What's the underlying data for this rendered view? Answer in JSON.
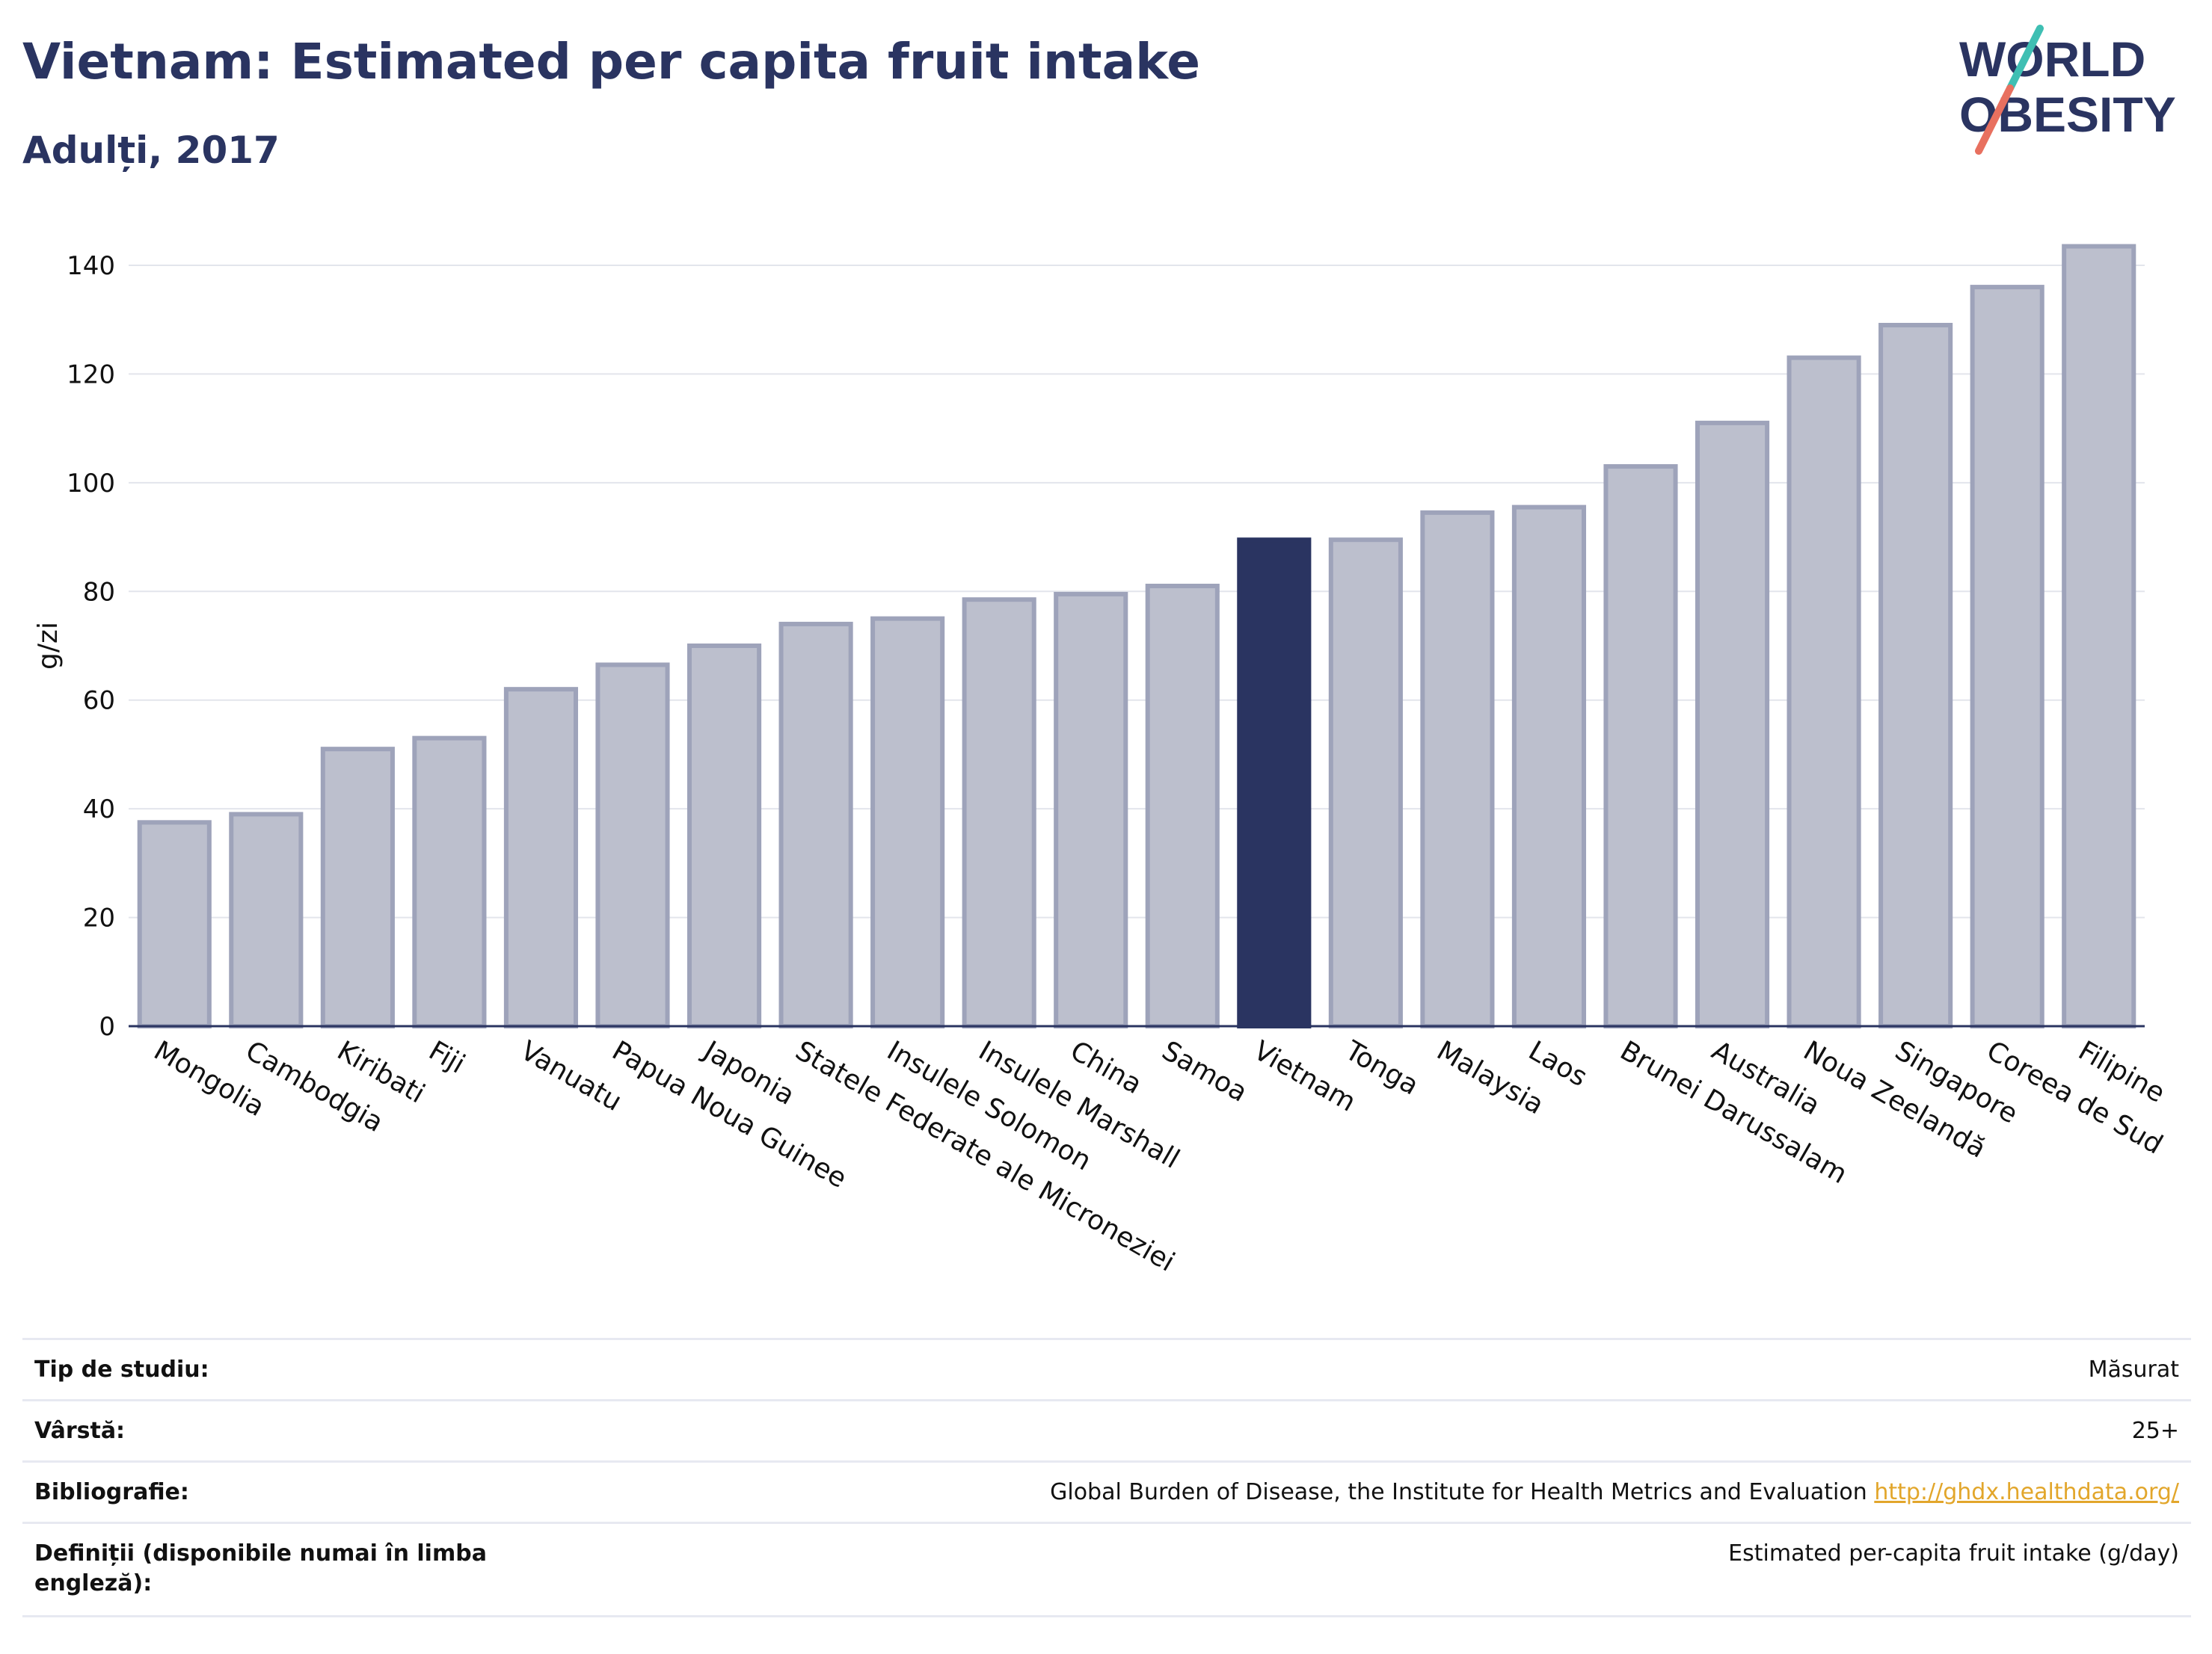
{
  "header": {
    "title": "Vietnam: Estimated per capita fruit intake",
    "subtitle": "Adulți, 2017",
    "logo_line1": "WORLD",
    "logo_line2": "OBESITY"
  },
  "colors": {
    "accent": "#2a3461",
    "bar": "#bcbfcd",
    "bar_edge": "#9ea3ba",
    "highlight": "#2a3461",
    "logo_teal": "#3fbfb3",
    "logo_coral": "#e8705f",
    "link": "#e2a62b"
  },
  "chart_data": {
    "type": "bar",
    "title": "Vietnam: Estimated per capita fruit intake",
    "subtitle": "Adulți, 2017",
    "xlabel": "",
    "ylabel": "g/zi",
    "ylim": [
      0,
      145
    ],
    "yticks": [
      0,
      20,
      40,
      60,
      80,
      100,
      120,
      140
    ],
    "grid": true,
    "highlight": "Vietnam",
    "categories": [
      "Mongolia",
      "Cambodgia",
      "Kiribati",
      "Fiji",
      "Vanuatu",
      "Papua Noua Guinee",
      "Japonia",
      "Statele Federate ale Microneziei",
      "Insulele Solomon",
      "Insulele Marshall",
      "China",
      "Samoa",
      "Vietnam",
      "Tonga",
      "Malaysia",
      "Laos",
      "Brunei Darussalam",
      "Australia",
      "Noua Zeelandă",
      "Singapore",
      "Coreea de Sud",
      "Filipine"
    ],
    "values": [
      37.5,
      39,
      51,
      53,
      62,
      66.5,
      70,
      74,
      75,
      78.5,
      79.5,
      81,
      89.5,
      89.5,
      94.5,
      95.5,
      103,
      111,
      123,
      129,
      136,
      143.5
    ]
  },
  "info": [
    {
      "key": "Tip de studiu:",
      "value": "Măsurat",
      "link": ""
    },
    {
      "key": "Vârstă:",
      "value": "25+",
      "link": ""
    },
    {
      "key": "Bibliografie:",
      "value": "Global Burden of Disease, the Institute for Health Metrics and Evaluation",
      "link": "http://ghdx.healthdata.org/"
    },
    {
      "key": "Definiții (disponibile numai în limba engleză):",
      "value": "Estimated per-capita fruit intake (g/day)",
      "link": ""
    }
  ]
}
